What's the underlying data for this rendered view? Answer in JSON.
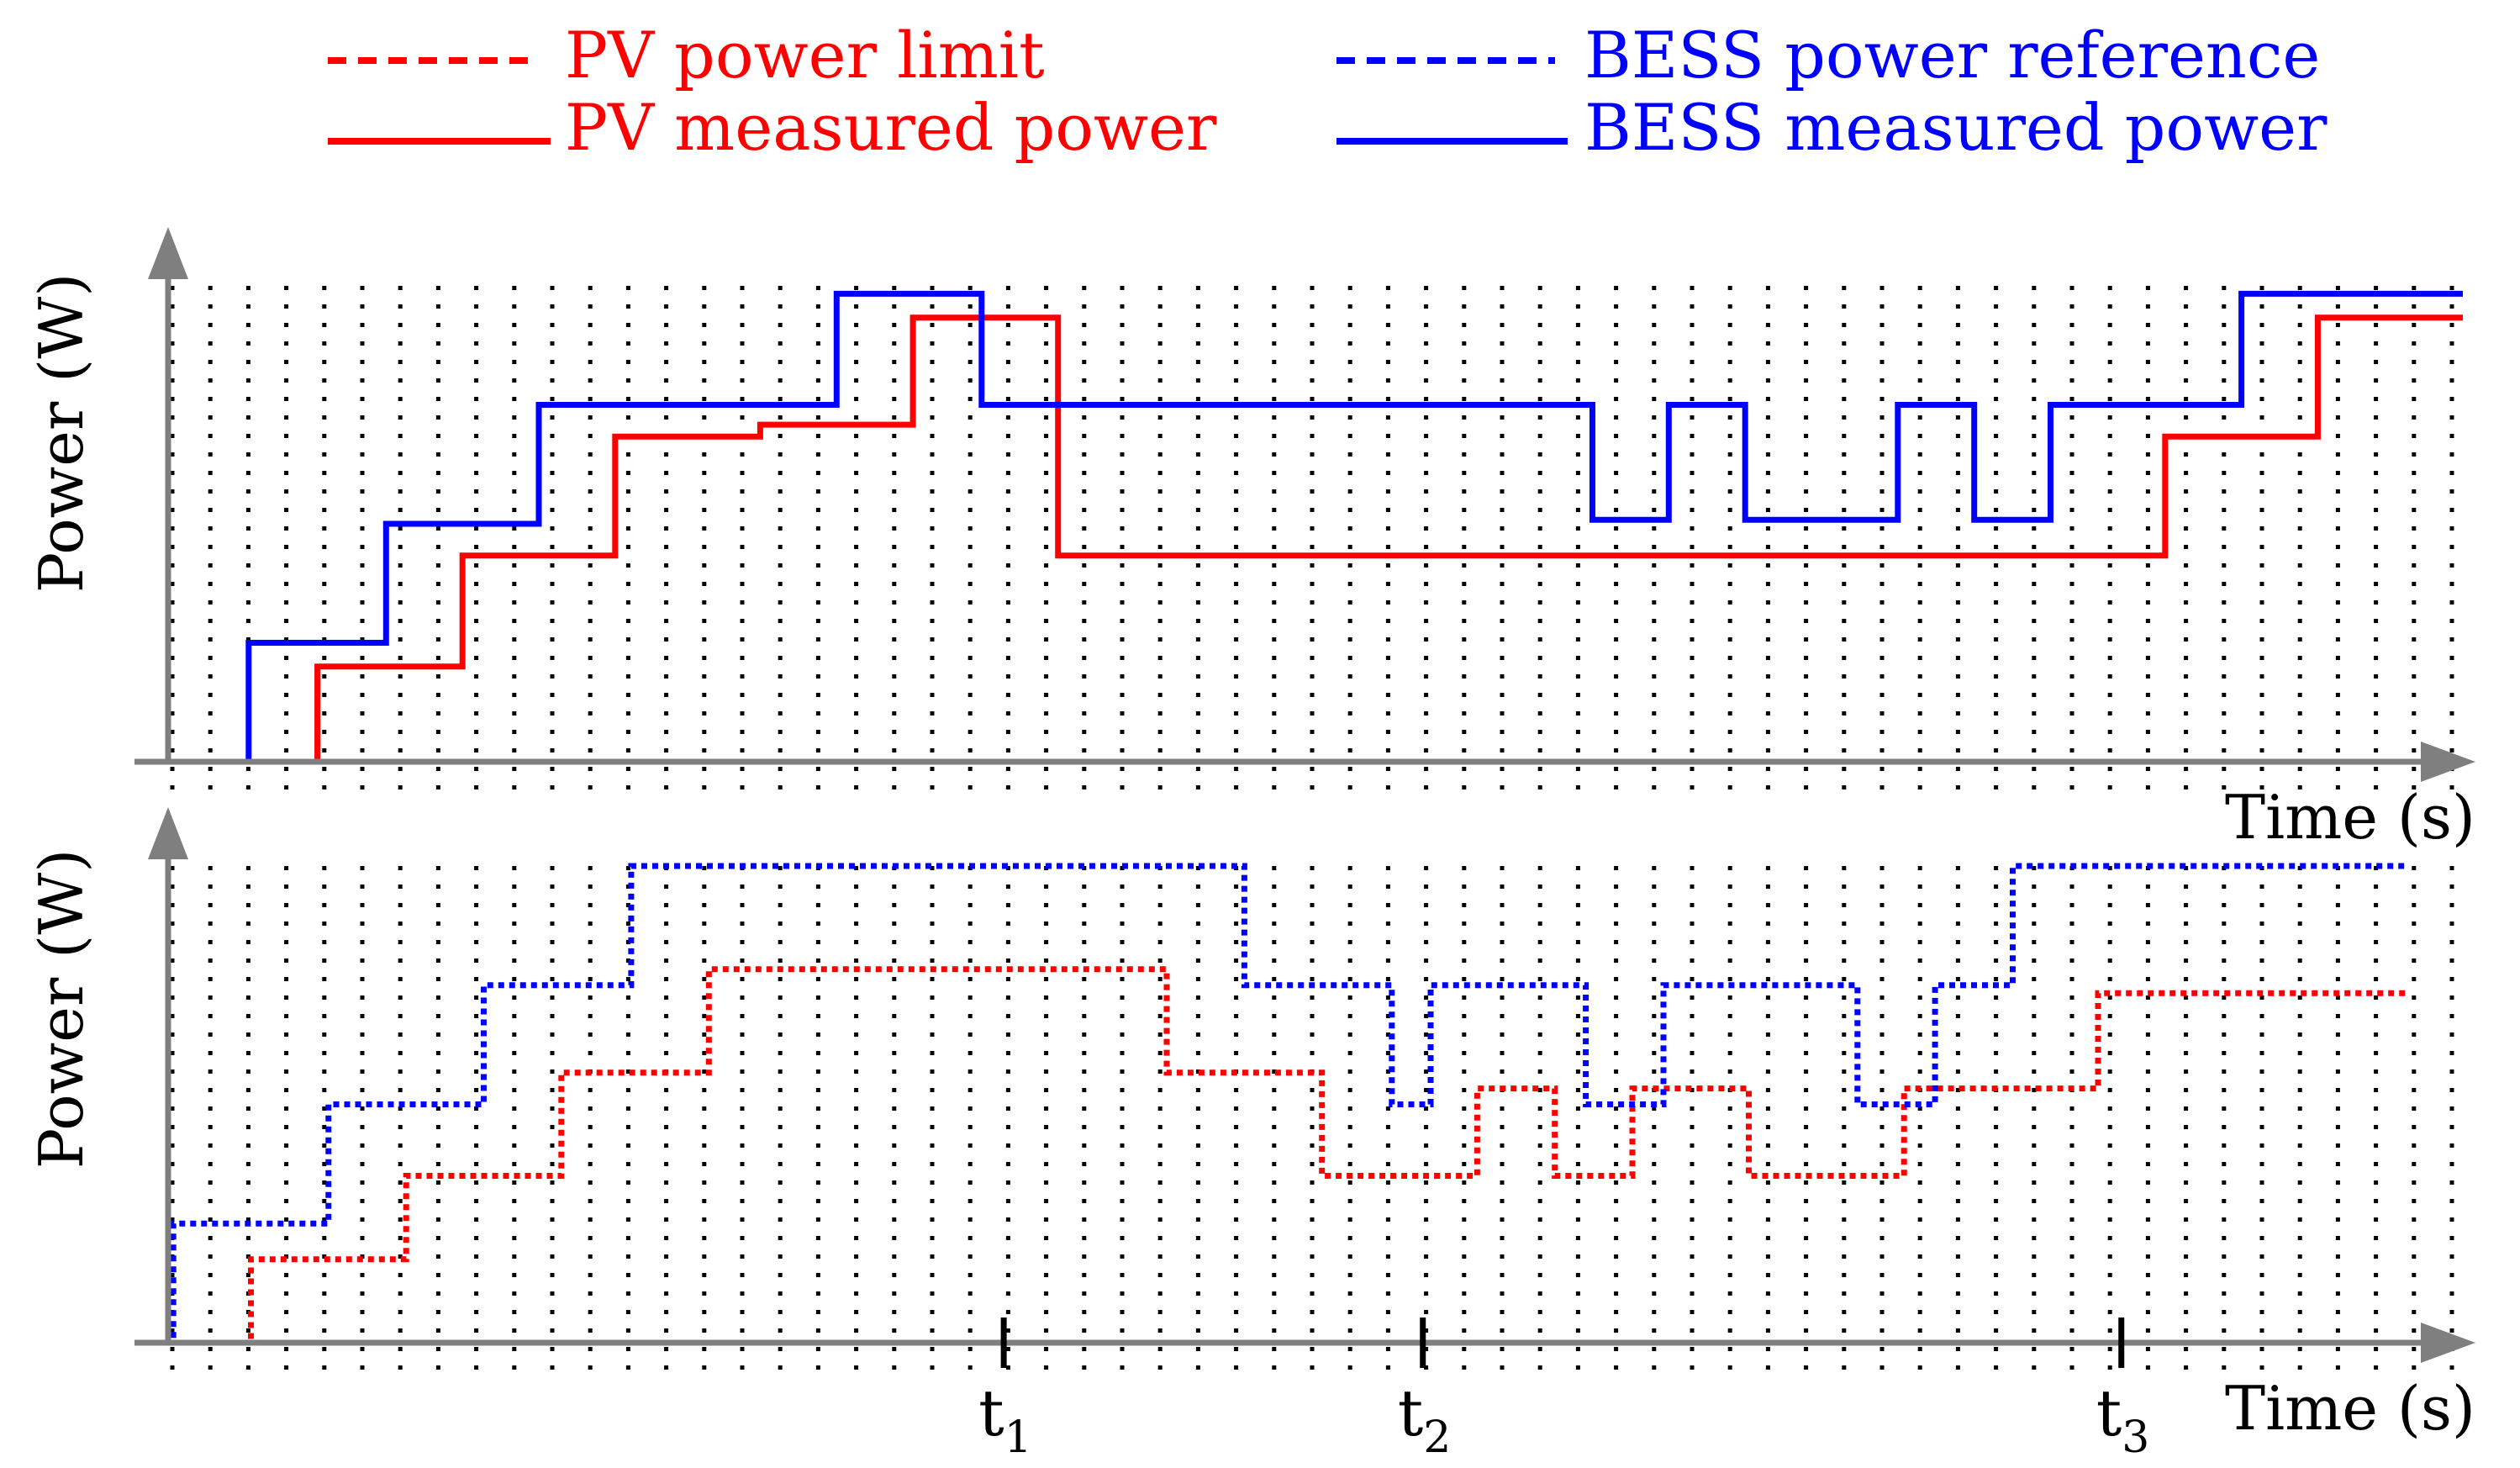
{
  "colors": {
    "pv": "#ff0000",
    "bess": "#0000ff",
    "axis": "#7f7f7f",
    "grid": "#000000"
  },
  "legend": {
    "pv_limit": "PV power limit",
    "pv_measured": "PV measured power",
    "bess_reference": "BESS power reference",
    "bess_measured": "BESS measured power"
  },
  "chart_data": [
    {
      "type": "line",
      "panel": "top",
      "xlabel": "Time (s)",
      "ylabel": "Power (W)",
      "xlim": [
        0,
        30
      ],
      "ylim": [
        0,
        6
      ],
      "grid": true,
      "legend_position": "top",
      "series": [
        {
          "name": "PV measured power",
          "style": "solid",
          "color": "#ff0000",
          "x": [
            0.5,
            1.9,
            1.9,
            3.8,
            3.8,
            5.8,
            5.8,
            7.7,
            7.7,
            9.7,
            9.7,
            11.6,
            11.6,
            15.2,
            15.2,
            26.1,
            26.1,
            28.1,
            28.1,
            30.0
          ],
          "y": [
            0,
            0,
            1.2,
            1.2,
            2.6,
            2.6,
            4.1,
            4.1,
            4.25,
            4.25,
            5.6,
            5.6,
            2.6,
            2.6,
            2.6,
            2.6,
            4.1,
            4.1,
            5.6,
            5.6
          ]
        },
        {
          "name": "BESS measured power",
          "style": "solid",
          "color": "#0000ff",
          "x": [
            0.5,
            1.0,
            1.0,
            2.8,
            2.8,
            4.8,
            4.8,
            6.7,
            6.7,
            8.7,
            8.7,
            10.6,
            10.6,
            18.6,
            18.6,
            19.6,
            19.6,
            20.6,
            20.6,
            22.6,
            22.6,
            23.6,
            23.6,
            24.6,
            24.6,
            26.1,
            26.1,
            26.1,
            26.1,
            27.1,
            27.1,
            30.0
          ],
          "y": [
            0,
            0,
            1.5,
            1.5,
            3.0,
            3.0,
            4.5,
            4.5,
            4.5,
            4.5,
            5.9,
            5.9,
            4.5,
            4.5,
            3.05,
            3.05,
            4.5,
            4.5,
            3.05,
            3.05,
            4.5,
            4.5,
            3.05,
            3.05,
            4.5,
            4.5,
            4.5,
            4.5,
            4.5,
            4.5,
            5.9,
            5.9
          ]
        }
      ]
    },
    {
      "type": "line",
      "panel": "bottom",
      "xlabel": "Time (s)",
      "ylabel": "Power (W)",
      "xlim": [
        0,
        30
      ],
      "ylim": [
        0,
        6
      ],
      "grid": true,
      "x_tick_labels": [
        {
          "x": 11.2,
          "label": "t",
          "sub": "1"
        },
        {
          "x": 16.6,
          "label": "t",
          "sub": "2"
        },
        {
          "x": 25.6,
          "label": "t",
          "sub": "3"
        }
      ],
      "series": [
        {
          "name": "PV power limit",
          "style": "dotted",
          "color": "#ff0000",
          "x": [
            0.0,
            1.5,
            1.5,
            3.5,
            3.5,
            5.5,
            5.5,
            7.4,
            7.4,
            9.4,
            9.4,
            13.3,
            13.3,
            15.3,
            15.3,
            17.3,
            17.3,
            18.3,
            18.3,
            19.3,
            19.3,
            20.8,
            20.8,
            21.8,
            21.8,
            22.8,
            22.8,
            25.3,
            25.3,
            27.3,
            27.3,
            29.3
          ],
          "y": [
            0,
            0,
            1.05,
            1.05,
            2.1,
            2.1,
            3.4,
            3.4,
            4.7,
            4.7,
            4.7,
            4.7,
            3.4,
            3.4,
            2.1,
            2.1,
            3.2,
            3.2,
            2.1,
            2.1,
            3.2,
            3.2,
            2.1,
            2.1,
            2.1,
            2.1,
            3.2,
            3.2,
            4.4,
            4.4,
            4.4,
            4.4
          ]
        },
        {
          "name": "BESS power reference",
          "style": "dotted",
          "color": "#0000ff",
          "x": [
            0.0,
            0.5,
            0.5,
            2.5,
            2.5,
            4.5,
            4.5,
            6.4,
            6.4,
            14.3,
            14.3,
            16.2,
            16.2,
            16.7,
            16.7,
            18.7,
            18.7,
            19.7,
            19.7,
            20.2,
            20.2,
            22.2,
            22.2,
            23.2,
            23.2,
            24.2,
            24.2,
            26.2,
            26.2,
            29.3
          ],
          "y": [
            0,
            0,
            1.5,
            1.5,
            3.0,
            3.0,
            4.5,
            4.5,
            6.0,
            6.0,
            4.5,
            4.5,
            3.0,
            3.0,
            4.5,
            4.5,
            3.0,
            3.0,
            4.5,
            4.5,
            4.5,
            4.5,
            3.0,
            3.0,
            4.5,
            4.5,
            6.0,
            6.0,
            6.0,
            6.0
          ]
        }
      ]
    }
  ]
}
